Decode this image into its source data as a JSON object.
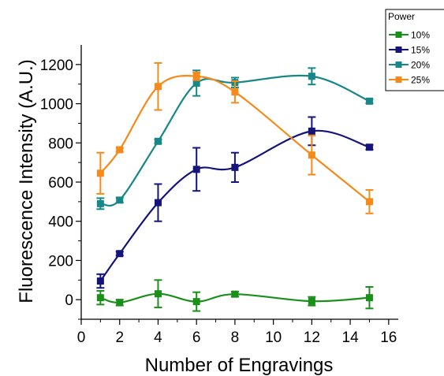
{
  "chart_data": {
    "type": "line",
    "title": "",
    "xlabel": "Number of Engravings",
    "ylabel": "Fluorescence Intensity (A.U.)",
    "xlim": [
      0,
      16.5
    ],
    "ylim": [
      -100,
      1300
    ],
    "xticks": [
      0,
      2,
      4,
      6,
      8,
      10,
      12,
      14,
      16
    ],
    "yticks": [
      0,
      200,
      400,
      600,
      800,
      1000,
      1200
    ],
    "grid": false,
    "legend": {
      "title": "Power",
      "placement": "top-right"
    },
    "series": [
      {
        "name": "10%",
        "color": "#1a8f1a",
        "x": [
          1,
          2,
          4,
          6,
          8,
          12,
          15
        ],
        "y": [
          10,
          -15,
          30,
          -10,
          28,
          -8,
          10
        ],
        "err": [
          35,
          15,
          70,
          48,
          12,
          22,
          55
        ]
      },
      {
        "name": "15%",
        "color": "#14147a",
        "x": [
          1,
          2,
          4,
          6,
          8,
          12,
          15
        ],
        "y": [
          95,
          235,
          495,
          665,
          675,
          860,
          778
        ],
        "err": [
          35,
          10,
          95,
          110,
          75,
          72,
          12
        ]
      },
      {
        "name": "20%",
        "color": "#178787",
        "x": [
          1,
          2,
          4,
          6,
          8,
          12,
          15
        ],
        "y": [
          490,
          508,
          808,
          1105,
          1108,
          1140,
          1013
        ],
        "err": [
          28,
          12,
          10,
          65,
          25,
          42,
          10
        ]
      },
      {
        "name": "25%",
        "color": "#f58a1a",
        "x": [
          1,
          2,
          4,
          6,
          8,
          12,
          15
        ],
        "y": [
          645,
          765,
          1088,
          1140,
          1060,
          738,
          500
        ],
        "err": [
          105,
          10,
          120,
          20,
          55,
          100,
          60
        ]
      }
    ]
  }
}
